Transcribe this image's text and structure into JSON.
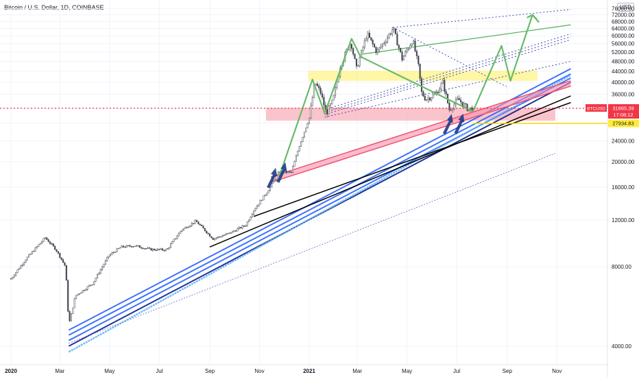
{
  "title": "Bitcoin / U.S. Dollar, 1D, COINBASE",
  "currency": "USD",
  "price_tag": {
    "symbol": "BTCUSD",
    "price": "31865.39",
    "countdown": "17:08:12",
    "color": "#f23645"
  },
  "level_tag": {
    "value": "27934.83",
    "color": "#ffeb3b"
  },
  "chart_data": {
    "type": "line",
    "log_scale": true,
    "ylim": [
      3400,
      82000
    ],
    "y_ticks": [
      "4000.00",
      "8000.00",
      "12000.00",
      "16000.00",
      "20000.00",
      "24000.00",
      "28000.00",
      "32000.00",
      "36000.00",
      "40000.00",
      "44000.00",
      "48000.00",
      "52000.00",
      "56000.00",
      "60000.00",
      "64000.00",
      "68000.00",
      "72000.00",
      "76000.00"
    ],
    "x_ticks": [
      "2020",
      "Mar",
      "May",
      "Jul",
      "Sep",
      "Nov",
      "2021",
      "Mar",
      "May",
      "Jul",
      "Sep",
      "Nov"
    ],
    "price_series": [
      {
        "x": "2020-01-01",
        "y": 7200
      },
      {
        "x": "2020-01-20",
        "y": 8600
      },
      {
        "x": "2020-02-12",
        "y": 10300
      },
      {
        "x": "2020-02-25",
        "y": 9300
      },
      {
        "x": "2020-03-08",
        "y": 8000
      },
      {
        "x": "2020-03-12",
        "y": 4800
      },
      {
        "x": "2020-03-20",
        "y": 6200
      },
      {
        "x": "2020-04-10",
        "y": 6900
      },
      {
        "x": "2020-04-30",
        "y": 8800
      },
      {
        "x": "2020-05-15",
        "y": 9500
      },
      {
        "x": "2020-06-01",
        "y": 9600
      },
      {
        "x": "2020-06-20",
        "y": 9300
      },
      {
        "x": "2020-07-10",
        "y": 9250
      },
      {
        "x": "2020-07-28",
        "y": 11000
      },
      {
        "x": "2020-08-15",
        "y": 11900
      },
      {
        "x": "2020-09-05",
        "y": 10200
      },
      {
        "x": "2020-09-25",
        "y": 10700
      },
      {
        "x": "2020-10-15",
        "y": 11500
      },
      {
        "x": "2020-10-25",
        "y": 13100
      },
      {
        "x": "2020-11-10",
        "y": 15300
      },
      {
        "x": "2020-11-25",
        "y": 18300
      },
      {
        "x": "2020-12-10",
        "y": 18200
      },
      {
        "x": "2020-12-20",
        "y": 23000
      },
      {
        "x": "2021-01-01",
        "y": 29300
      },
      {
        "x": "2021-01-08",
        "y": 40000
      },
      {
        "x": "2021-01-15",
        "y": 36500
      },
      {
        "x": "2021-01-22",
        "y": 30500
      },
      {
        "x": "2021-01-30",
        "y": 34000
      },
      {
        "x": "2021-02-08",
        "y": 46000
      },
      {
        "x": "2021-02-21",
        "y": 57000
      },
      {
        "x": "2021-02-28",
        "y": 45000
      },
      {
        "x": "2021-03-13",
        "y": 61000
      },
      {
        "x": "2021-03-25",
        "y": 52000
      },
      {
        "x": "2021-04-05",
        "y": 58000
      },
      {
        "x": "2021-04-14",
        "y": 64000
      },
      {
        "x": "2021-04-25",
        "y": 49000
      },
      {
        "x": "2021-05-08",
        "y": 58000
      },
      {
        "x": "2021-05-15",
        "y": 46000
      },
      {
        "x": "2021-05-19",
        "y": 36500
      },
      {
        "x": "2021-05-24",
        "y": 34500
      },
      {
        "x": "2021-06-05",
        "y": 36000
      },
      {
        "x": "2021-06-14",
        "y": 40000
      },
      {
        "x": "2021-06-22",
        "y": 31500
      },
      {
        "x": "2021-07-03",
        "y": 34500
      },
      {
        "x": "2021-07-15",
        "y": 31600
      },
      {
        "x": "2021-07-21",
        "y": 31865
      }
    ],
    "current_price": 31865.39,
    "horizontal_level": 27934.83,
    "zones": [
      {
        "x1": "2020-12-31",
        "x2": "2021-10-08",
        "y1": 40500,
        "y2": 44200,
        "color": "#fff176"
      },
      {
        "x1": "2020-11-09",
        "x2": "2021-10-30",
        "y1": 28600,
        "y2": 32000,
        "color": "#f8a5b0"
      }
    ],
    "channel_lines": [
      {
        "x1": "2020-03-12",
        "y1": 4600,
        "x2": "2021-11-18",
        "y2": 45000,
        "color": "#2962ff"
      },
      {
        "x1": "2020-03-12",
        "y1": 4400,
        "x2": "2021-11-18",
        "y2": 43000,
        "color": "#2962ff"
      },
      {
        "x1": "2020-03-12",
        "y1": 4200,
        "x2": "2021-11-18",
        "y2": 41500,
        "color": "#2962ff"
      },
      {
        "x1": "2020-03-12",
        "y1": 4000,
        "x2": "2021-11-18",
        "y2": 40000,
        "color": "#0b1c8a"
      },
      {
        "x1": "2020-03-12",
        "y1": 3800,
        "x2": "2021-11-18",
        "y2": 42500,
        "color": "#64b5f6"
      }
    ],
    "support_lines": [
      {
        "x1": "2020-11-15",
        "y1": 17500,
        "x2": "2021-11-18",
        "y2": 40500,
        "color": "#f23645"
      },
      {
        "x1": "2020-11-15",
        "y1": 16700,
        "x2": "2021-11-18",
        "y2": 38700,
        "color": "#f23645"
      },
      {
        "x1": "2020-09-01",
        "y1": 9500,
        "x2": "2021-11-18",
        "y2": 35500,
        "color": "#000000"
      },
      {
        "x1": "2020-10-25",
        "y1": 12400,
        "x2": "2021-11-18",
        "y2": 33500,
        "color": "#000000"
      },
      {
        "x1": "2020-03-12",
        "y1": 4100,
        "x2": "2021-10-30",
        "y2": 21500,
        "color": "#5c6bc0"
      }
    ],
    "green_path": [
      {
        "x": "2020-11-25",
        "y": 17500
      },
      {
        "x": "2021-01-05",
        "y": 41000
      },
      {
        "x": "2021-01-20",
        "y": 30500
      },
      {
        "x": "2021-02-22",
        "y": 58500
      },
      {
        "x": "2021-03-05",
        "y": 50000
      },
      {
        "x": "2021-07-21",
        "y": 31000
      },
      {
        "x": "2021-08-25",
        "y": 55000
      },
      {
        "x": "2021-09-05",
        "y": 40500
      },
      {
        "x": "2021-10-02",
        "y": 72000
      },
      {
        "x": "2021-10-10",
        "y": 67500
      }
    ],
    "green_channel_line": {
      "x1": "2021-03-05",
      "y1": 51000,
      "x2": "2021-11-18",
      "y2": 66000
    },
    "pitchfork_lines": [
      {
        "x1": "2021-04-14",
        "y1": 64500,
        "x2": "2021-11-18",
        "y2": 75500
      },
      {
        "x1": "2021-01-20",
        "y1": 31500,
        "x2": "2021-11-18",
        "y2": 61000
      },
      {
        "x1": "2021-01-20",
        "y1": 30800,
        "x2": "2021-11-18",
        "y2": 59500
      },
      {
        "x1": "2021-01-20",
        "y1": 30200,
        "x2": "2021-11-18",
        "y2": 58000
      },
      {
        "x1": "2021-01-20",
        "y1": 29500,
        "x2": "2021-11-18",
        "y2": 48000
      },
      {
        "x1": "2021-04-14",
        "y1": 64500,
        "x2": "2021-08-31",
        "y2": 38500
      }
    ],
    "arrows": [
      {
        "x": "2020-11-20",
        "y": 18500
      },
      {
        "x": "2020-12-02",
        "y": 19400
      },
      {
        "x": "2021-06-24",
        "y": 29600
      },
      {
        "x": "2021-07-08",
        "y": 29700
      }
    ]
  }
}
